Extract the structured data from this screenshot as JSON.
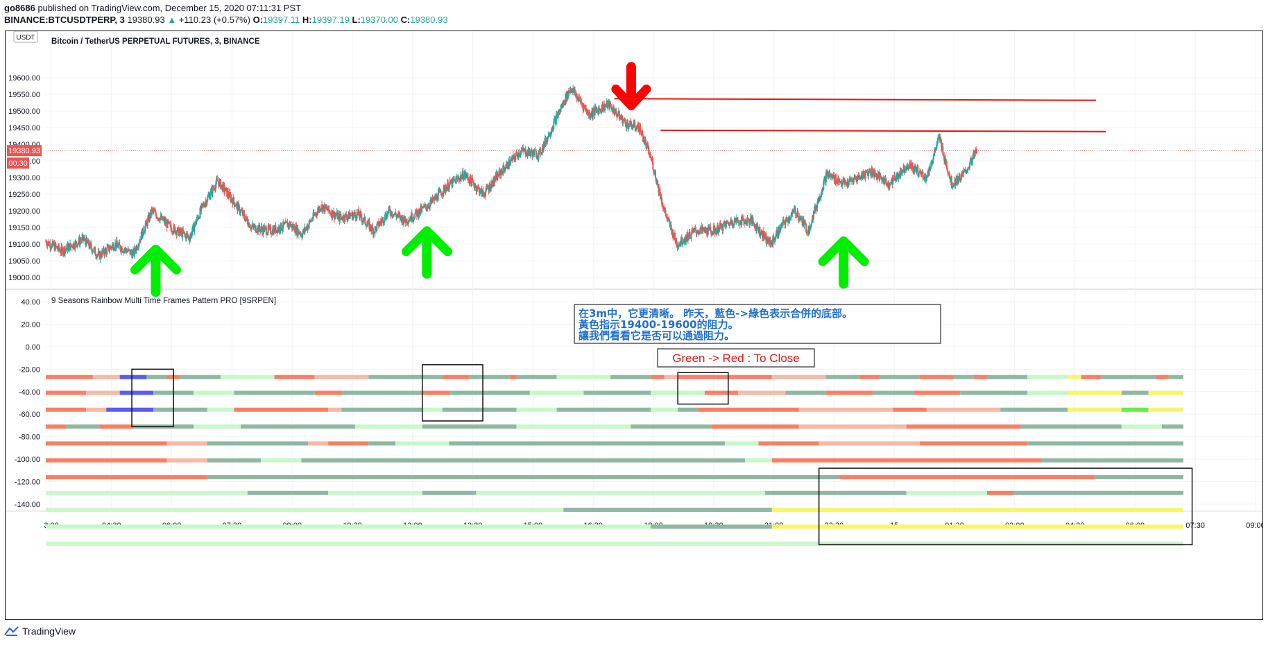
{
  "header": {
    "author": "go8686",
    "published": "published on TradingView.com, December 15, 2020 07:11:31 PST",
    "symbol_line": "BINANCE:BTCUSDTPERP, 3",
    "price": "19380.93",
    "arrow": "▲",
    "change": "+110.23 (+0.57%)",
    "o_label": "O:",
    "o_value": "19397.11",
    "h_label": "H:",
    "h_value": "19397.19",
    "l_label": "L:",
    "l_value": "19370.00",
    "c_label": "C:",
    "c_value": "19380.93"
  },
  "footer": {
    "brand": "TradingView"
  },
  "colors": {
    "up": "#26a69a",
    "down": "#ef5350",
    "arrow_green": "#00ee00",
    "arrow_red": "#ff0000",
    "line_red": "#ee1111",
    "note_blue": "#1f6fd1"
  },
  "chart_data": [
    {
      "type": "candlestick",
      "title": "Bitcoin / TetherUS PERPETUAL FUTURES, 3, BINANCE",
      "currency_button": "USDT",
      "ylim": [
        18960,
        19630
      ],
      "y_ticks": [
        "19000.00",
        "19050.00",
        "19100.00",
        "19150.00",
        "19200.00",
        "19250.00",
        "19300.00",
        "19350.00",
        "19400.00",
        "19450.00",
        "19500.00",
        "19550.00",
        "19600.00"
      ],
      "last_price_label": "19380.93",
      "countdown_label": "00:30",
      "last_price": 19380.93,
      "anchors": [
        [
          0,
          19108
        ],
        [
          25,
          19080
        ],
        [
          60,
          19115
        ],
        [
          85,
          19065
        ],
        [
          110,
          19100
        ],
        [
          140,
          19070
        ],
        [
          170,
          19200
        ],
        [
          200,
          19150
        ],
        [
          230,
          19120
        ],
        [
          250,
          19210
        ],
        [
          275,
          19290
        ],
        [
          300,
          19230
        ],
        [
          330,
          19150
        ],
        [
          360,
          19140
        ],
        [
          390,
          19160
        ],
        [
          410,
          19130
        ],
        [
          440,
          19215
        ],
        [
          470,
          19180
        ],
        [
          500,
          19190
        ],
        [
          525,
          19140
        ],
        [
          550,
          19200
        ],
        [
          575,
          19170
        ],
        [
          600,
          19200
        ],
        [
          620,
          19230
        ],
        [
          640,
          19270
        ],
        [
          670,
          19310
        ],
        [
          700,
          19250
        ],
        [
          730,
          19320
        ],
        [
          760,
          19380
        ],
        [
          790,
          19370
        ],
        [
          810,
          19450
        ],
        [
          840,
          19570
        ],
        [
          870,
          19490
        ],
        [
          900,
          19520
        ],
        [
          930,
          19460
        ],
        [
          950,
          19450
        ],
        [
          970,
          19350
        ],
        [
          990,
          19200
        ],
        [
          1010,
          19100
        ],
        [
          1040,
          19140
        ],
        [
          1070,
          19140
        ],
        [
          1100,
          19170
        ],
        [
          1130,
          19170
        ],
        [
          1160,
          19100
        ],
        [
          1180,
          19160
        ],
        [
          1200,
          19200
        ],
        [
          1220,
          19140
        ],
        [
          1250,
          19310
        ],
        [
          1280,
          19280
        ],
        [
          1320,
          19320
        ],
        [
          1350,
          19280
        ],
        [
          1380,
          19340
        ],
        [
          1410,
          19300
        ],
        [
          1430,
          19420
        ],
        [
          1450,
          19280
        ],
        [
          1470,
          19310
        ],
        [
          1490,
          19380
        ]
      ],
      "annotations": {
        "arrows_up_green": [
          {
            "x": 176,
            "price": 19085
          },
          {
            "x": 610,
            "price": 19140
          },
          {
            "x": 1277,
            "price": 19110
          }
        ],
        "arrow_down_red": {
          "x": 937,
          "price": 19545
        },
        "resistance_lines": [
          {
            "x1": 910,
            "p1": 19537,
            "x2": 1572,
            "p2": 19532
          },
          {
            "x1": 984,
            "p1": 19442,
            "x2": 1586,
            "p2": 19438
          }
        ]
      }
    },
    {
      "type": "heatmap",
      "title": "9 Seasons Rainbow Multi Time Frames Pattern PRO [9SRPEN]",
      "ylim": [
        -150,
        45
      ],
      "y_ticks": [
        "40.00",
        "20.00",
        "0.00",
        "-20.00",
        "-40.00",
        "-60.00",
        "-80.00",
        "-100.00",
        "-120.00",
        "-140.00"
      ],
      "note_lines": [
        "在3m中，它更清晰。 昨天，藍色->綠色表示合併的底部。",
        "黃色指示19400-19600的阻力。",
        "讓我們看看它是否可以通過阻力。"
      ],
      "label_box": "Green -> Red : To Close",
      "palette": {
        "R": "#f97f62",
        "P": "#f8b8a6",
        "r": "#f44a28",
        "G": "#8fb7a3",
        "g": "#6e9e88",
        "L": "#c9f7c9",
        "B": "#5b5bf0",
        "Y": "#f6f66c",
        "V": "#66ee44"
      },
      "rows": [
        {
          "y": -27,
          "segs": [
            [
              "R",
              0,
              70
            ],
            [
              "P",
              70,
              110
            ],
            [
              "B",
              110,
              150
            ],
            [
              "G",
              150,
              180
            ],
            [
              "R",
              180,
              200
            ],
            [
              "G",
              200,
              260
            ],
            [
              "L",
              260,
              340
            ],
            [
              "R",
              340,
              400
            ],
            [
              "P",
              400,
              480
            ],
            [
              "G",
              480,
              590
            ],
            [
              "R",
              590,
              630
            ],
            [
              "G",
              630,
              690
            ],
            [
              "R",
              690,
              700
            ],
            [
              "G",
              700,
              760
            ],
            [
              "L",
              760,
              840
            ],
            [
              "G",
              840,
              900
            ],
            [
              "R",
              900,
              920
            ],
            [
              "P",
              920,
              940
            ],
            [
              "R",
              940,
              1080
            ],
            [
              "P",
              1080,
              1160
            ],
            [
              "G",
              1160,
              1210
            ],
            [
              "R",
              1210,
              1240
            ],
            [
              "G",
              1240,
              1300
            ],
            [
              "R",
              1300,
              1350
            ],
            [
              "G",
              1350,
              1380
            ],
            [
              "R",
              1380,
              1400
            ],
            [
              "G",
              1400,
              1460
            ],
            [
              "L",
              1460,
              1520
            ],
            [
              "Y",
              1520,
              1540
            ],
            [
              "R",
              1540,
              1570
            ],
            [
              "G",
              1570,
              1650
            ],
            [
              "R",
              1650,
              1670
            ],
            [
              "G",
              1670,
              1692
            ]
          ]
        },
        {
          "y": -41,
          "segs": [
            [
              "R",
              0,
              60
            ],
            [
              "P",
              60,
              110
            ],
            [
              "B",
              110,
              160
            ],
            [
              "G",
              160,
              220
            ],
            [
              "L",
              220,
              280
            ],
            [
              "G",
              280,
              400
            ],
            [
              "R",
              400,
              440
            ],
            [
              "G",
              440,
              560
            ],
            [
              "R",
              560,
              600
            ],
            [
              "G",
              600,
              720
            ],
            [
              "L",
              720,
              800
            ],
            [
              "G",
              800,
              900
            ],
            [
              "L",
              900,
              980
            ],
            [
              "R",
              980,
              1030
            ],
            [
              "P",
              1030,
              1100
            ],
            [
              "G",
              1100,
              1160
            ],
            [
              "R",
              1160,
              1230
            ],
            [
              "G",
              1230,
              1290
            ],
            [
              "R",
              1290,
              1360
            ],
            [
              "G",
              1360,
              1460
            ],
            [
              "L",
              1460,
              1520
            ],
            [
              "Y",
              1520,
              1600
            ],
            [
              "G",
              1600,
              1640
            ],
            [
              "Y",
              1640,
              1692
            ]
          ]
        },
        {
          "y": -56,
          "segs": [
            [
              "R",
              0,
              60
            ],
            [
              "P",
              60,
              90
            ],
            [
              "B",
              90,
              160
            ],
            [
              "G",
              160,
              240
            ],
            [
              "L",
              240,
              280
            ],
            [
              "R",
              280,
              420
            ],
            [
              "P",
              420,
              440
            ],
            [
              "G",
              440,
              560
            ],
            [
              "L",
              560,
              590
            ],
            [
              "G",
              590,
              700
            ],
            [
              "L",
              700,
              760
            ],
            [
              "G",
              760,
              900
            ],
            [
              "L",
              900,
              940
            ],
            [
              "G",
              940,
              970
            ],
            [
              "R",
              970,
              1120
            ],
            [
              "P",
              1120,
              1260
            ],
            [
              "R",
              1260,
              1310
            ],
            [
              "P",
              1310,
              1420
            ],
            [
              "G",
              1420,
              1520
            ],
            [
              "Y",
              1520,
              1600
            ],
            [
              "V",
              1600,
              1640
            ],
            [
              "Y",
              1640,
              1692
            ]
          ]
        },
        {
          "y": -71,
          "segs": [
            [
              "R",
              0,
              30
            ],
            [
              "G",
              30,
              80
            ],
            [
              "R",
              80,
              130
            ],
            [
              "G",
              130,
              220
            ],
            [
              "L",
              220,
              290
            ],
            [
              "G",
              290,
              460
            ],
            [
              "L",
              460,
              560
            ],
            [
              "G",
              560,
              700
            ],
            [
              "L",
              700,
              870
            ],
            [
              "G",
              870,
              990
            ],
            [
              "R",
              990,
              1120
            ],
            [
              "P",
              1120,
              1280
            ],
            [
              "R",
              1280,
              1450
            ],
            [
              "G",
              1450,
              1600
            ],
            [
              "L",
              1600,
              1660
            ],
            [
              "G",
              1660,
              1692
            ]
          ]
        },
        {
          "y": -86,
          "segs": [
            [
              "R",
              0,
              180
            ],
            [
              "P",
              180,
              240
            ],
            [
              "G",
              240,
              390
            ],
            [
              "P",
              390,
              420
            ],
            [
              "R",
              420,
              480
            ],
            [
              "G",
              480,
              520
            ],
            [
              "L",
              520,
              600
            ],
            [
              "G",
              600,
              1010
            ],
            [
              "L",
              1010,
              1060
            ],
            [
              "R",
              1060,
              1150
            ],
            [
              "P",
              1150,
              1300
            ],
            [
              "R",
              1300,
              1460
            ],
            [
              "G",
              1460,
              1692
            ]
          ]
        },
        {
          "y": -101,
          "segs": [
            [
              "R",
              0,
              180
            ],
            [
              "P",
              180,
              240
            ],
            [
              "G",
              240,
              320
            ],
            [
              "L",
              320,
              380
            ],
            [
              "G",
              380,
              1040
            ],
            [
              "L",
              1040,
              1080
            ],
            [
              "R",
              1080,
              1480
            ],
            [
              "G",
              1480,
              1692
            ]
          ]
        },
        {
          "y": -116,
          "segs": [
            [
              "R",
              0,
              240
            ],
            [
              "G",
              240,
              1180
            ],
            [
              "R",
              1180,
              1200
            ],
            [
              "R",
              1200,
              1560
            ],
            [
              "G",
              1560,
              1692
            ]
          ]
        },
        {
          "y": -130,
          "segs": [
            [
              "L",
              0,
              300
            ],
            [
              "G",
              300,
              420
            ],
            [
              "L",
              420,
              560
            ],
            [
              "G",
              560,
              640
            ],
            [
              "L",
              640,
              1070
            ],
            [
              "G",
              1070,
              1280
            ],
            [
              "L",
              1280,
              1400
            ],
            [
              "R",
              1400,
              1440
            ],
            [
              "G",
              1440,
              1530
            ],
            [
              "G",
              1530,
              1692
            ]
          ]
        },
        {
          "y": -145,
          "segs": [
            [
              "L",
              0,
              770
            ],
            [
              "G",
              770,
              1080
            ],
            [
              "Y",
              1080,
              1692
            ]
          ]
        },
        {
          "y": -160,
          "segs": [
            [
              "L",
              0,
              900
            ],
            [
              "G",
              900,
              1080
            ],
            [
              "Y",
              1080,
              1692
            ]
          ]
        },
        {
          "y": -175,
          "segs": [
            [
              "L",
              0,
              1692
            ]
          ]
        }
      ],
      "boxes": [
        {
          "x1": 128,
          "x2": 190,
          "y1": -20,
          "y2": -71
        },
        {
          "x1": 560,
          "x2": 650,
          "y1": -16,
          "y2": -66
        },
        {
          "x1": 940,
          "x2": 1015,
          "y1": -23,
          "y2": -51
        },
        {
          "x1": 1150,
          "x2": 1705,
          "y1": -108,
          "y2": -176
        }
      ]
    }
  ],
  "x_axis": {
    "labels": [
      "3:00",
      "04:30",
      "06:00",
      "07:30",
      "09:00",
      "10:30",
      "12:00",
      "13:30",
      "15:00",
      "16:30",
      "18:00",
      "19:30",
      "21:00",
      "22:30",
      "15",
      "01:30",
      "03:00",
      "04:30",
      "06:00",
      "07:30",
      "09:00"
    ]
  }
}
